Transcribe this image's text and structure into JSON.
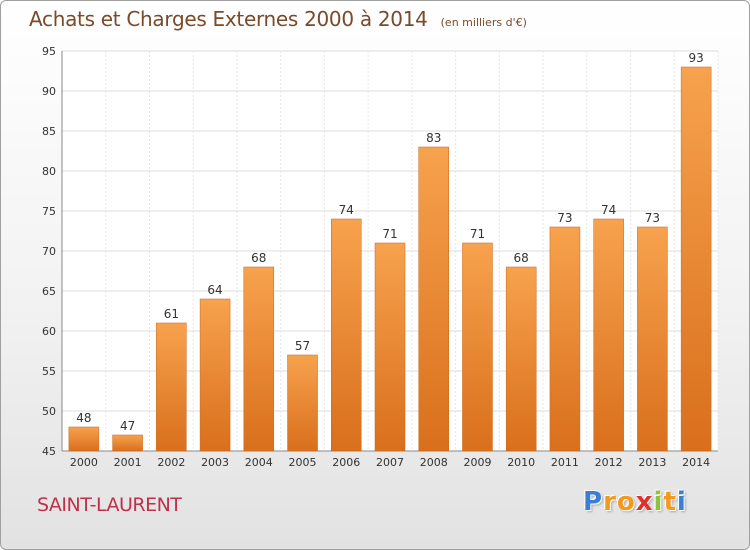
{
  "chart_data": {
    "type": "bar",
    "title": "Achats et Charges Externes 2000 à 2014",
    "subtitle": "(en milliers d'€)",
    "xlabel": "",
    "ylabel": "",
    "categories": [
      "2000",
      "2001",
      "2002",
      "2003",
      "2004",
      "2005",
      "2006",
      "2007",
      "2008",
      "2009",
      "2010",
      "2011",
      "2012",
      "2013",
      "2014"
    ],
    "values": [
      48,
      47,
      61,
      64,
      68,
      57,
      74,
      71,
      83,
      71,
      68,
      73,
      74,
      73,
      93
    ],
    "ylim": [
      45,
      95
    ],
    "yticks": [
      45,
      50,
      55,
      60,
      65,
      70,
      75,
      80,
      85,
      90,
      95
    ],
    "grid": true,
    "legend": "none",
    "bar_color_top": "#f7a24e",
    "bar_color_bottom": "#d96f1c"
  },
  "place_name": "SAINT-LAURENT",
  "brand": {
    "letters": [
      "P",
      "r",
      "o",
      "x",
      "i",
      "t",
      "i"
    ],
    "colors": [
      "#3a7fd5",
      "#f29a1f",
      "#f29a1f",
      "#e0302b",
      "#8fc13e",
      "#f29a1f",
      "#3a7fd5"
    ]
  },
  "colors": {
    "title": "#7a4a2a",
    "place": "#c0304a"
  }
}
